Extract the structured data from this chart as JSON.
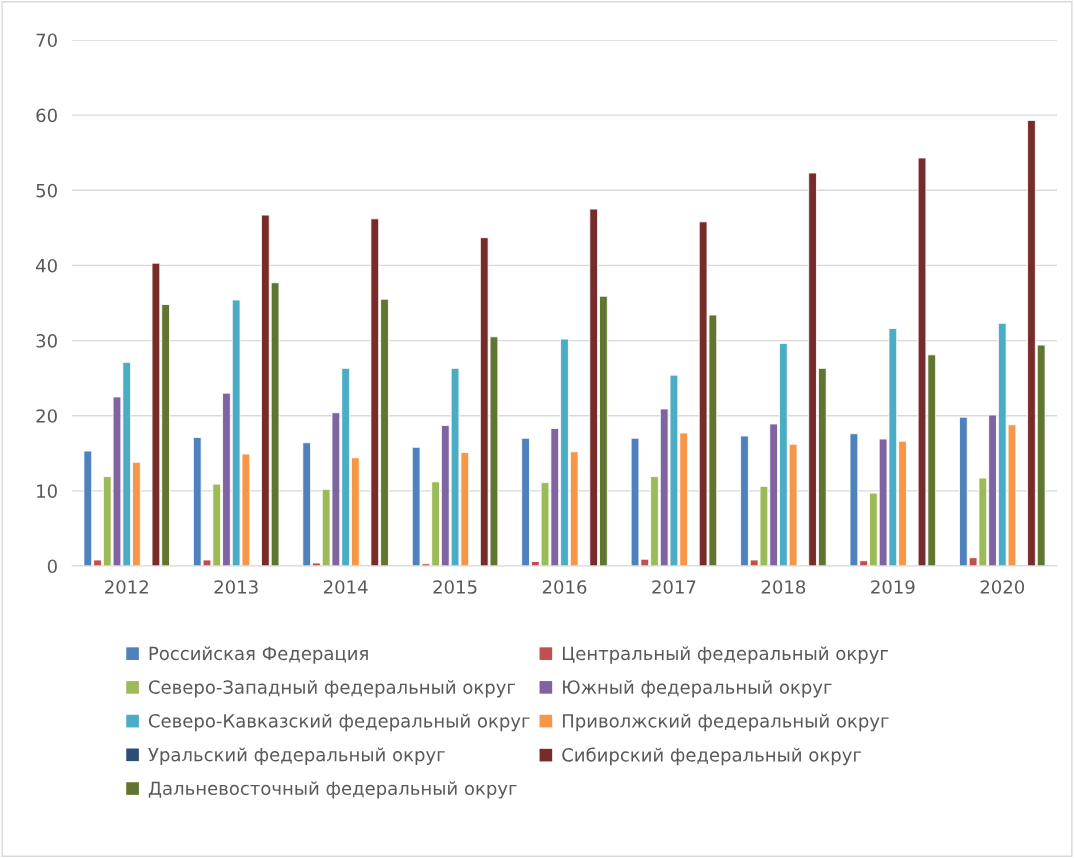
{
  "chart_data": {
    "type": "bar",
    "categories": [
      "2012",
      "2013",
      "2014",
      "2015",
      "2016",
      "2017",
      "2018",
      "2019",
      "2020"
    ],
    "series": [
      {
        "name": "Российская Федерация",
        "color": "#4f81bd",
        "values": [
          15.3,
          17.1,
          16.4,
          15.8,
          17.0,
          17.0,
          17.3,
          17.6,
          19.8
        ]
      },
      {
        "name": "Центральный федеральный округ",
        "color": "#c0504d",
        "values": [
          0.8,
          0.8,
          0.4,
          0.3,
          0.6,
          0.9,
          0.8,
          0.7,
          1.1
        ]
      },
      {
        "name": "Северо-Западный федеральный округ",
        "color": "#9bbb59",
        "values": [
          11.9,
          10.9,
          10.2,
          11.2,
          11.1,
          11.9,
          10.6,
          9.7,
          11.7
        ]
      },
      {
        "name": "Южный федеральный округ",
        "color": "#8064a2",
        "values": [
          22.5,
          23.0,
          20.4,
          18.7,
          18.3,
          20.9,
          18.9,
          16.9,
          20.1
        ]
      },
      {
        "name": "Северо-Кавказский федеральный округ",
        "color": "#4bacc6",
        "values": [
          27.1,
          35.4,
          26.3,
          26.3,
          30.2,
          25.4,
          29.6,
          31.6,
          32.3
        ]
      },
      {
        "name": "Приволжский федеральный округ",
        "color": "#f79646",
        "values": [
          13.8,
          14.9,
          14.4,
          15.1,
          15.2,
          17.7,
          16.2,
          16.6,
          18.8
        ]
      },
      {
        "name": "Уральский федеральный округ",
        "color": "#2c4d75",
        "values": [
          null,
          null,
          null,
          null,
          null,
          null,
          null,
          null,
          null
        ]
      },
      {
        "name": "Сибирский федеральный округ",
        "color": "#772c2a",
        "values": [
          40.3,
          46.7,
          46.2,
          43.7,
          47.5,
          45.8,
          52.3,
          54.3,
          59.3
        ]
      },
      {
        "name": "Дальневосточный федеральный округ",
        "color": "#5f7530",
        "values": [
          34.8,
          37.7,
          35.5,
          30.5,
          35.9,
          33.4,
          26.3,
          28.1,
          29.4
        ]
      }
    ],
    "ylim": [
      0,
      70
    ],
    "yticks": [
      0,
      10,
      20,
      30,
      40,
      50,
      60,
      70
    ],
    "grid": "y",
    "legend": "bottom"
  }
}
